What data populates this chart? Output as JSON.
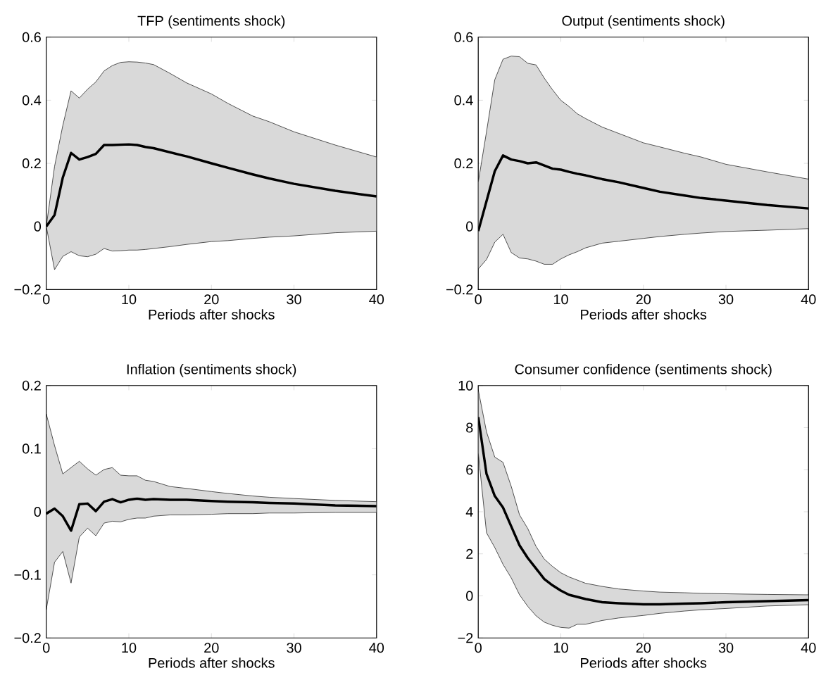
{
  "chart_data": [
    {
      "type": "line",
      "title": "TFP (sentiments shock)",
      "xlabel": "Periods after shocks",
      "x": [
        0,
        1,
        2,
        3,
        4,
        5,
        6,
        7,
        8,
        9,
        10,
        11,
        12,
        13,
        15,
        17,
        20,
        22,
        25,
        27,
        30,
        35,
        40
      ],
      "xlim": [
        0,
        40
      ],
      "xticks": [
        0,
        10,
        20,
        30,
        40
      ],
      "ylim": [
        -0.2,
        0.6
      ],
      "yticks": [
        {
          "value": -0.2,
          "label": "−0.2"
        },
        0,
        0.2,
        0.4,
        0.6
      ],
      "series": [
        {
          "color": "#000000",
          "values": [
            0,
            0.036,
            0.155,
            0.233,
            0.212,
            0.22,
            0.23,
            0.258,
            0.258,
            0.259,
            0.26,
            0.258,
            0.252,
            0.248,
            0.235,
            0.222,
            0.2,
            0.186,
            0.165,
            0.152,
            0.135,
            0.113,
            0.095
          ],
          "upper": [
            0,
            0.19,
            0.32,
            0.43,
            0.407,
            0.435,
            0.458,
            0.493,
            0.51,
            0.52,
            0.522,
            0.521,
            0.518,
            0.513,
            0.485,
            0.455,
            0.42,
            0.39,
            0.35,
            0.332,
            0.3,
            0.258,
            0.22
          ],
          "lower": [
            0,
            -0.137,
            -0.095,
            -0.08,
            -0.093,
            -0.096,
            -0.088,
            -0.07,
            -0.078,
            -0.077,
            -0.075,
            -0.075,
            -0.073,
            -0.07,
            -0.064,
            -0.057,
            -0.048,
            -0.045,
            -0.038,
            -0.034,
            -0.03,
            -0.02,
            -0.015
          ]
        }
      ]
    },
    {
      "type": "line",
      "title": "Output (sentiments shock)",
      "xlabel": "Periods after shocks",
      "x": [
        0,
        1,
        2,
        3,
        4,
        5,
        6,
        7,
        8,
        9,
        10,
        11,
        12,
        13,
        15,
        17,
        20,
        22,
        25,
        27,
        30,
        35,
        40
      ],
      "xlim": [
        0,
        40
      ],
      "xticks": [
        0,
        10,
        20,
        30,
        40
      ],
      "ylim": [
        -0.2,
        0.6
      ],
      "yticks": [
        {
          "value": -0.2,
          "label": "−0.2"
        },
        0,
        0.2,
        0.4,
        0.6
      ],
      "series": [
        {
          "color": "#000000",
          "values": [
            -0.015,
            0.08,
            0.175,
            0.225,
            0.212,
            0.207,
            0.2,
            0.203,
            0.193,
            0.183,
            0.18,
            0.173,
            0.167,
            0.162,
            0.15,
            0.14,
            0.122,
            0.11,
            0.098,
            0.09,
            0.082,
            0.068,
            0.057
          ],
          "upper": [
            0.14,
            0.3,
            0.465,
            0.53,
            0.54,
            0.538,
            0.517,
            0.512,
            0.47,
            0.433,
            0.4,
            0.38,
            0.357,
            0.342,
            0.315,
            0.295,
            0.265,
            0.252,
            0.232,
            0.22,
            0.197,
            0.173,
            0.15
          ],
          "lower": [
            -0.135,
            -0.105,
            -0.05,
            -0.025,
            -0.083,
            -0.1,
            -0.103,
            -0.11,
            -0.12,
            -0.12,
            -0.103,
            -0.09,
            -0.08,
            -0.068,
            -0.053,
            -0.047,
            -0.038,
            -0.032,
            -0.025,
            -0.021,
            -0.016,
            -0.012,
            -0.007
          ]
        }
      ]
    },
    {
      "type": "line",
      "title": "Inflation (sentiments shock)",
      "xlabel": "Periods after shocks",
      "x": [
        0,
        1,
        2,
        3,
        4,
        5,
        6,
        7,
        8,
        9,
        10,
        11,
        12,
        13,
        15,
        17,
        20,
        22,
        25,
        27,
        30,
        35,
        40
      ],
      "xlim": [
        0,
        40
      ],
      "xticks": [
        0,
        10,
        20,
        30,
        40
      ],
      "ylim": [
        -0.2,
        0.2
      ],
      "yticks": [
        {
          "value": -0.2,
          "label": "−0.2"
        },
        {
          "value": -0.1,
          "label": "−0.1"
        },
        0,
        0.1,
        0.2
      ],
      "series": [
        {
          "color": "#000000",
          "values": [
            -0.003,
            0.005,
            -0.007,
            -0.03,
            0.012,
            0.013,
            0.001,
            0.016,
            0.02,
            0.015,
            0.019,
            0.021,
            0.019,
            0.02,
            0.019,
            0.019,
            0.017,
            0.016,
            0.015,
            0.014,
            0.013,
            0.01,
            0.009
          ],
          "upper": [
            0.155,
            0.105,
            0.06,
            0.07,
            0.08,
            0.068,
            0.058,
            0.067,
            0.07,
            0.058,
            0.057,
            0.057,
            0.05,
            0.048,
            0.04,
            0.037,
            0.032,
            0.029,
            0.025,
            0.023,
            0.021,
            0.018,
            0.016
          ],
          "lower": [
            -0.155,
            -0.08,
            -0.063,
            -0.113,
            -0.04,
            -0.026,
            -0.038,
            -0.018,
            -0.015,
            -0.016,
            -0.012,
            -0.01,
            -0.01,
            -0.007,
            -0.005,
            -0.005,
            -0.004,
            -0.003,
            -0.003,
            -0.002,
            -0.002,
            -0.001,
            -0.001
          ]
        }
      ]
    },
    {
      "type": "line",
      "title": "Consumer confidence (sentiments shock)",
      "xlabel": "Periods after shocks",
      "x": [
        0,
        1,
        2,
        3,
        4,
        5,
        6,
        7,
        8,
        9,
        10,
        11,
        12,
        13,
        15,
        17,
        20,
        22,
        25,
        27,
        30,
        35,
        40
      ],
      "xlim": [
        0,
        40
      ],
      "xticks": [
        0,
        10,
        20,
        30,
        40
      ],
      "ylim": [
        -2,
        10
      ],
      "yticks": [
        {
          "value": -2,
          "label": "−2"
        },
        0,
        2,
        4,
        6,
        8,
        10
      ],
      "series": [
        {
          "color": "#000000",
          "values": [
            8.5,
            5.8,
            4.75,
            4.2,
            3.3,
            2.4,
            1.8,
            1.3,
            0.8,
            0.5,
            0.25,
            0.05,
            -0.05,
            -0.15,
            -0.3,
            -0.35,
            -0.4,
            -0.4,
            -0.37,
            -0.35,
            -0.3,
            -0.25,
            -0.2
          ],
          "upper": [
            9.8,
            7.8,
            6.6,
            6.35,
            5.2,
            3.85,
            3.2,
            2.35,
            1.75,
            1.4,
            1.1,
            0.9,
            0.75,
            0.6,
            0.45,
            0.33,
            0.23,
            0.18,
            0.15,
            0.12,
            0.1,
            0.07,
            0.05
          ],
          "lower": [
            6.8,
            3.0,
            2.3,
            1.5,
            0.85,
            0.05,
            -0.5,
            -0.95,
            -1.25,
            -1.4,
            -1.5,
            -1.53,
            -1.35,
            -1.35,
            -1.17,
            -1.05,
            -0.93,
            -0.83,
            -0.72,
            -0.66,
            -0.6,
            -0.48,
            -0.42
          ]
        }
      ]
    }
  ]
}
